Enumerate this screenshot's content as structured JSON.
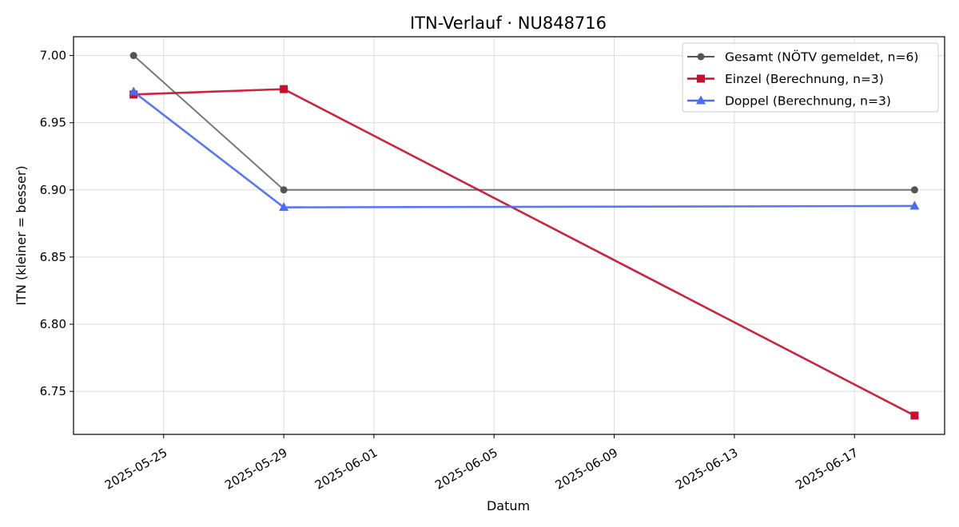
{
  "chart_data": {
    "type": "line",
    "title": "ITN-Verlauf · NU848716",
    "xlabel": "Datum",
    "ylabel": "ITN  (kleiner = besser)",
    "x_type": "date",
    "xlim": [
      "2025-05-22",
      "2025-06-20"
    ],
    "ylim": [
      6.718,
      7.014
    ],
    "x_ticks": [
      "2025-05-25",
      "2025-05-29",
      "2025-06-01",
      "2025-06-05",
      "2025-06-09",
      "2025-06-13",
      "2025-06-17"
    ],
    "y_ticks": [
      6.75,
      6.8,
      6.85,
      6.9,
      6.95,
      7.0
    ],
    "y_tick_labels": [
      "6.75",
      "6.80",
      "6.85",
      "6.90",
      "6.95",
      "7.00"
    ],
    "grid": true,
    "legend_position": "top-right",
    "series": [
      {
        "name": "Gesamt (NÖTV gemeldet, n=6)",
        "color": "#555555",
        "marker": "circle",
        "x": [
          "2025-05-24",
          "2025-05-29",
          "2025-06-19"
        ],
        "y": [
          7.0,
          6.9,
          6.9
        ]
      },
      {
        "name": "Einzel (Berechnung, n=3)",
        "color": "#c8102e",
        "marker": "square",
        "x": [
          "2025-05-24",
          "2025-05-29",
          "2025-06-19"
        ],
        "y": [
          6.971,
          6.975,
          6.732
        ]
      },
      {
        "name": "Doppel (Berechnung, n=3)",
        "color": "#4a6cf0",
        "marker": "triangle",
        "x": [
          "2025-05-24",
          "2025-05-29",
          "2025-06-19"
        ],
        "y": [
          6.973,
          6.887,
          6.888
        ]
      }
    ]
  }
}
